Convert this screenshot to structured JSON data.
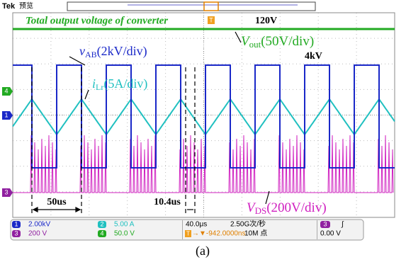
{
  "header": {
    "brand": "Tek",
    "mode": "预览"
  },
  "annotations": {
    "title": "Total output voltage of converter",
    "vout_level": "120V",
    "vout_symbol": "V",
    "vout_sub": "out",
    "vout_scale": "(50V/div)",
    "vab_level": "4kV",
    "vab_symbol": "v",
    "vab_sub": "AB",
    "vab_scale": "(2kV/div)",
    "ilr_symbol": "i",
    "ilr_sub": "Lr",
    "ilr_scale": "(5A/div)",
    "vds_symbol": "V",
    "vds_sub": "DS",
    "vds_scale": "(200V/div)",
    "period": "50us",
    "deadtime": "10.4us"
  },
  "markers": {
    "ch4": "4",
    "ch1": "1",
    "ch3": "3",
    "trigger": "T"
  },
  "status": {
    "ch1": {
      "id": "1",
      "scale": "2.00kV"
    },
    "ch3": {
      "id": "3",
      "scale": "200 V"
    },
    "ch2": {
      "id": "2",
      "scale": "5.00 A"
    },
    "ch4": {
      "id": "4",
      "scale": "50.0 V"
    },
    "timebase": "40.0μs",
    "sample_rate": "2.50G次/秒",
    "trigger_icon": "T",
    "trigger_pos": "→▼-942.0000ns",
    "record": "10M 点",
    "trig_src": "3",
    "trig_slope": "∫",
    "trig_level": "0.00 V"
  },
  "caption": "(a)"
}
